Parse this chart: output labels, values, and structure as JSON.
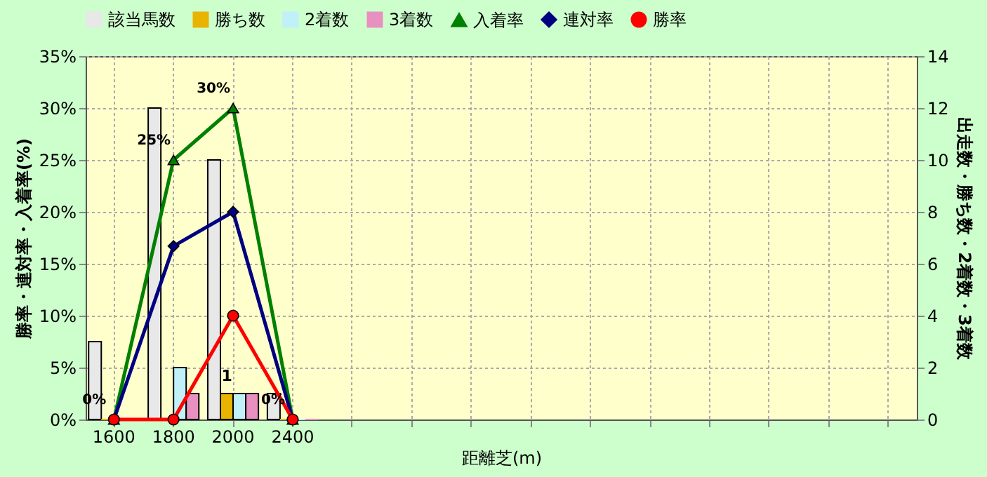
{
  "chart_data": {
    "type": "bar",
    "xlabel": "距離芝(m)",
    "ylabel": "勝率・連対率・入着率(%)",
    "y2label": "出走数・勝ち数・2着数・3着数",
    "categories": [
      "1600",
      "1800",
      "2000",
      "2400",
      null,
      null,
      null,
      null,
      null,
      null,
      null,
      null,
      null,
      null
    ],
    "series": [
      {
        "name": "該当馬数",
        "axis": "y2",
        "color": "#e8e8e8",
        "values": [
          3,
          12,
          10,
          1,
          null,
          null,
          null,
          null,
          null,
          null,
          null,
          null,
          null,
          null
        ]
      },
      {
        "name": "勝ち数",
        "axis": "y2",
        "color": "#e8b400",
        "values": [
          0,
          0,
          1,
          0,
          null,
          null,
          null,
          null,
          null,
          null,
          null,
          null,
          null,
          null
        ],
        "value_labels": [
          null,
          null,
          "1",
          null,
          null,
          null,
          null,
          null,
          null,
          null,
          null,
          null,
          null,
          null
        ]
      },
      {
        "name": "2着数",
        "axis": "y2",
        "color": "#c0f0f8",
        "values": [
          0,
          2,
          1,
          0,
          null,
          null,
          null,
          null,
          null,
          null,
          null,
          null,
          null,
          null
        ]
      },
      {
        "name": "3着数",
        "axis": "y2",
        "color": "#e890c0",
        "values": [
          0,
          1,
          1,
          0,
          null,
          null,
          null,
          null,
          null,
          null,
          null,
          null,
          null,
          null
        ]
      },
      {
        "name": "入着率",
        "type": "line",
        "color": "#008000",
        "marker": "triangle",
        "values": [
          0,
          25,
          30,
          0,
          null,
          null,
          null,
          null,
          null,
          null,
          null,
          null,
          null,
          null
        ],
        "value_labels": [
          "0%",
          "25%",
          "30%",
          "0%",
          null,
          null,
          null,
          null,
          null,
          null,
          null,
          null,
          null,
          null
        ]
      },
      {
        "name": "連対率",
        "type": "line",
        "color": "#000080",
        "marker": "diamond",
        "values": [
          0,
          16.7,
          20,
          0,
          null,
          null,
          null,
          null,
          null,
          null,
          null,
          null,
          null,
          null
        ]
      },
      {
        "name": "勝率",
        "type": "line",
        "color": "#ff0000",
        "marker": "circle",
        "values": [
          0,
          0,
          10,
          0,
          null,
          null,
          null,
          null,
          null,
          null,
          null,
          null,
          null,
          null
        ]
      }
    ],
    "ylim": [
      0,
      35
    ],
    "yticks": [
      {
        "value": 0,
        "label": "0%"
      },
      {
        "value": 5,
        "label": "5%"
      },
      {
        "value": 10,
        "label": "10%"
      },
      {
        "value": 15,
        "label": "15%"
      },
      {
        "value": 20,
        "label": "20%"
      },
      {
        "value": 25,
        "label": "25%"
      },
      {
        "value": 30,
        "label": "30%"
      },
      {
        "value": 35,
        "label": "35%"
      }
    ],
    "y2lim": [
      0,
      14
    ],
    "y2ticks": [
      0,
      2,
      4,
      6,
      8,
      10,
      12,
      14
    ],
    "grid": true,
    "legend": "top"
  }
}
